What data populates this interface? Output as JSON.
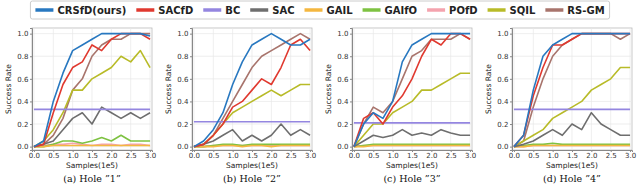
{
  "chart_data": [
    {
      "type": "line",
      "title": "(a) Hole ”1”",
      "xlabel": "Samples(1e5)",
      "ylabel": "Success Rate",
      "legend": "top",
      "grid": true,
      "x": [
        0,
        0.25,
        0.5,
        0.75,
        1.0,
        1.25,
        1.5,
        1.75,
        2.0,
        2.25,
        2.5,
        2.75,
        3.0
      ],
      "xlim": [
        -0.05,
        3.05
      ],
      "ylim": [
        -0.03,
        1.05
      ],
      "xticks": [
        {
          "value": 0,
          "label": "0.0"
        },
        {
          "value": 0.5,
          "label": "0.5"
        },
        {
          "value": 1,
          "label": "1.0"
        },
        {
          "value": 1.5,
          "label": "1.5"
        },
        {
          "value": 2,
          "label": "2.0"
        },
        {
          "value": 2.5,
          "label": "2.5"
        },
        {
          "value": 3,
          "label": "3.0"
        }
      ],
      "yticks": [
        {
          "value": 0,
          "label": "0.0"
        },
        {
          "value": 0.2,
          "label": "0.2"
        },
        {
          "value": 0.4,
          "label": "0.4"
        },
        {
          "value": 0.6,
          "label": "0.6"
        },
        {
          "value": 0.8,
          "label": "0.8"
        },
        {
          "value": 1,
          "label": "1.0"
        }
      ],
      "series": [
        {
          "name": "CRSfD(ours)",
          "color": "#2878c0",
          "values": [
            0,
            0.05,
            0.4,
            0.65,
            0.85,
            0.9,
            0.95,
            1.0,
            1.0,
            1.0,
            1.0,
            1.0,
            0.98
          ]
        },
        {
          "name": "SACfD",
          "color": "#e0392f",
          "values": [
            0,
            0.02,
            0.3,
            0.55,
            0.7,
            0.75,
            0.9,
            0.85,
            0.95,
            1.0,
            1.0,
            1.0,
            0.95
          ]
        },
        {
          "name": "BC",
          "color": "#9486e0",
          "values": [
            0.33,
            0.33,
            0.33,
            0.33,
            0.33,
            0.33,
            0.33,
            0.33,
            0.33,
            0.33,
            0.33,
            0.33,
            0.33
          ]
        },
        {
          "name": "SAC",
          "color": "#6e6e6e",
          "values": [
            0,
            0.02,
            0.05,
            0.15,
            0.25,
            0.3,
            0.2,
            0.35,
            0.3,
            0.25,
            0.3,
            0.25,
            0.3
          ]
        },
        {
          "name": "GAIL",
          "color": "#f4b740",
          "values": [
            0,
            0,
            0.01,
            0.01,
            0.01,
            0.01,
            0.01,
            0.01,
            0.01,
            0.01,
            0.01,
            0.01,
            0.01
          ]
        },
        {
          "name": "GAIfO",
          "color": "#7ec242",
          "values": [
            0,
            0,
            0.02,
            0.05,
            0.05,
            0.03,
            0.05,
            0.08,
            0.05,
            0.1,
            0.05,
            0.05,
            0.05
          ]
        },
        {
          "name": "POfD",
          "color": "#f4a3ae",
          "values": [
            0,
            0.01,
            0.02,
            0.02,
            0.03,
            0.02,
            0.01,
            0.02,
            0.02,
            0.01,
            0.02,
            0.02,
            0.01
          ]
        },
        {
          "name": "SQIL",
          "color": "#b8bb28",
          "values": [
            0,
            0.05,
            0.15,
            0.3,
            0.5,
            0.5,
            0.6,
            0.65,
            0.7,
            0.8,
            0.75,
            0.85,
            0.7
          ]
        },
        {
          "name": "RS-GM",
          "color": "#a8746c",
          "values": [
            0,
            0.02,
            0.1,
            0.25,
            0.5,
            0.6,
            0.8,
            0.9,
            0.95,
            0.95,
            1.0,
            1.0,
            1.0
          ]
        }
      ]
    },
    {
      "type": "line",
      "title": "(b) Hole ”2”",
      "xlabel": "Samples(1e5)",
      "ylabel": "Success Rate",
      "grid": true,
      "x": [
        0,
        0.25,
        0.5,
        0.75,
        1.0,
        1.25,
        1.5,
        1.75,
        2.0,
        2.25,
        2.5,
        2.75,
        3.0
      ],
      "xlim": [
        -0.05,
        3.05
      ],
      "ylim": [
        -0.03,
        1.05
      ],
      "xticks": [
        {
          "value": 0,
          "label": "0.0"
        },
        {
          "value": 0.5,
          "label": "0.5"
        },
        {
          "value": 1,
          "label": "1.0"
        },
        {
          "value": 1.5,
          "label": "1.5"
        },
        {
          "value": 2,
          "label": "2.0"
        },
        {
          "value": 2.5,
          "label": "2.5"
        },
        {
          "value": 3,
          "label": "3.0"
        }
      ],
      "yticks": [
        {
          "value": 0,
          "label": "0.0"
        },
        {
          "value": 0.2,
          "label": "0.2"
        },
        {
          "value": 0.4,
          "label": "0.4"
        },
        {
          "value": 0.6,
          "label": "0.6"
        },
        {
          "value": 0.8,
          "label": "0.8"
        },
        {
          "value": 1,
          "label": "1.0"
        }
      ],
      "series": [
        {
          "name": "CRSfD(ours)",
          "color": "#2878c0",
          "values": [
            0,
            0.05,
            0.15,
            0.3,
            0.55,
            0.75,
            0.9,
            0.95,
            1.0,
            0.95,
            0.9,
            0.9,
            0.95
          ]
        },
        {
          "name": "SACfD",
          "color": "#e0392f",
          "values": [
            0,
            0.02,
            0.1,
            0.2,
            0.35,
            0.4,
            0.5,
            0.6,
            0.55,
            0.7,
            0.9,
            0.95,
            0.85
          ]
        },
        {
          "name": "BC",
          "color": "#9486e0",
          "values": [
            0.22,
            0.22,
            0.22,
            0.22,
            0.22,
            0.22,
            0.22,
            0.22,
            0.22,
            0.22,
            0.22,
            0.22,
            0.22
          ]
        },
        {
          "name": "SAC",
          "color": "#6e6e6e",
          "values": [
            0,
            0.02,
            0.05,
            0.1,
            0.15,
            0.05,
            0.1,
            0.05,
            0.1,
            0.2,
            0.1,
            0.15,
            0.1
          ]
        },
        {
          "name": "GAIL",
          "color": "#f4b740",
          "values": [
            0,
            0,
            0,
            0.01,
            0.01,
            0,
            0.01,
            0.01,
            0,
            0.01,
            0.01,
            0.01,
            0.01
          ]
        },
        {
          "name": "GAIfO",
          "color": "#7ec242",
          "values": [
            0,
            0,
            0.01,
            0.02,
            0.02,
            0.01,
            0.02,
            0.02,
            0.02,
            0.02,
            0.02,
            0.02,
            0.02
          ]
        },
        {
          "name": "POfD",
          "color": "#f4a3ae",
          "values": [
            0,
            0,
            0.01,
            0.01,
            0.01,
            0.01,
            0.01,
            0.01,
            0.01,
            0.01,
            0.01,
            0.01,
            0.01
          ]
        },
        {
          "name": "SQIL",
          "color": "#b8bb28",
          "values": [
            0,
            0.02,
            0.1,
            0.2,
            0.3,
            0.35,
            0.4,
            0.45,
            0.5,
            0.45,
            0.5,
            0.55,
            0.55
          ]
        },
        {
          "name": "RS-GM",
          "color": "#a8746c",
          "values": [
            0,
            0.02,
            0.1,
            0.25,
            0.4,
            0.55,
            0.7,
            0.8,
            0.85,
            0.9,
            0.95,
            1.0,
            0.95
          ]
        }
      ]
    },
    {
      "type": "line",
      "title": "(c) Hole ”3”",
      "xlabel": "Samples(1e5)",
      "ylabel": "Success Rate",
      "grid": true,
      "x": [
        0,
        0.25,
        0.5,
        0.75,
        1.0,
        1.25,
        1.5,
        1.75,
        2.0,
        2.25,
        2.5,
        2.75,
        3.0
      ],
      "xlim": [
        -0.05,
        3.05
      ],
      "ylim": [
        -0.03,
        1.05
      ],
      "xticks": [
        {
          "value": 0,
          "label": "0.0"
        },
        {
          "value": 0.5,
          "label": "0.5"
        },
        {
          "value": 1,
          "label": "1.0"
        },
        {
          "value": 1.5,
          "label": "1.5"
        },
        {
          "value": 2,
          "label": "2.0"
        },
        {
          "value": 2.5,
          "label": "2.5"
        },
        {
          "value": 3,
          "label": "3.0"
        }
      ],
      "yticks": [
        {
          "value": 0,
          "label": "0.0"
        },
        {
          "value": 0.2,
          "label": "0.2"
        },
        {
          "value": 0.4,
          "label": "0.4"
        },
        {
          "value": 0.6,
          "label": "0.6"
        },
        {
          "value": 0.8,
          "label": "0.8"
        },
        {
          "value": 1,
          "label": "1.0"
        }
      ],
      "series": [
        {
          "name": "CRSfD(ours)",
          "color": "#2878c0",
          "values": [
            0,
            0.2,
            0.3,
            0.25,
            0.4,
            0.75,
            0.9,
            0.95,
            1.0,
            1.0,
            1.0,
            1.0,
            1.0
          ]
        },
        {
          "name": "SACfD",
          "color": "#e0392f",
          "values": [
            0,
            0.25,
            0.3,
            0.2,
            0.35,
            0.45,
            0.6,
            0.8,
            0.95,
            0.9,
            1.0,
            1.0,
            0.95
          ]
        },
        {
          "name": "BC",
          "color": "#9486e0",
          "values": [
            0.21,
            0.21,
            0.21,
            0.21,
            0.21,
            0.21,
            0.21,
            0.21,
            0.21,
            0.21,
            0.21,
            0.21,
            0.21
          ]
        },
        {
          "name": "SAC",
          "color": "#6e6e6e",
          "values": [
            0,
            0.05,
            0.1,
            0.08,
            0.1,
            0.15,
            0.1,
            0.12,
            0.1,
            0.15,
            0.12,
            0.1,
            0.1
          ]
        },
        {
          "name": "GAIL",
          "color": "#f4b740",
          "values": [
            0,
            0,
            0.01,
            0.01,
            0.01,
            0.01,
            0.01,
            0.01,
            0.01,
            0.01,
            0.01,
            0.01,
            0.01
          ]
        },
        {
          "name": "GAIfO",
          "color": "#7ec242",
          "values": [
            0,
            0.01,
            0.02,
            0.02,
            0.02,
            0.02,
            0.02,
            0.02,
            0.02,
            0.02,
            0.02,
            0.02,
            0.02
          ]
        },
        {
          "name": "POfD",
          "color": "#f4a3ae",
          "values": [
            0,
            0.01,
            0.01,
            0.01,
            0.01,
            0.01,
            0.01,
            0.01,
            0.01,
            0.01,
            0.01,
            0.01,
            0.01
          ]
        },
        {
          "name": "SQIL",
          "color": "#b8bb28",
          "values": [
            0,
            0.1,
            0.2,
            0.2,
            0.3,
            0.35,
            0.4,
            0.5,
            0.5,
            0.55,
            0.6,
            0.65,
            0.65
          ]
        },
        {
          "name": "RS-GM",
          "color": "#a8746c",
          "values": [
            0,
            0.2,
            0.35,
            0.3,
            0.4,
            0.6,
            0.8,
            0.85,
            0.95,
            0.95,
            0.95,
            1.0,
            0.95
          ]
        }
      ]
    },
    {
      "type": "line",
      "title": "(d) Hole ”4”",
      "xlabel": "Samples(1e5)",
      "ylabel": "Success Rate",
      "grid": true,
      "x": [
        0,
        0.25,
        0.5,
        0.75,
        1.0,
        1.25,
        1.5,
        1.75,
        2.0,
        2.25,
        2.5,
        2.75,
        3.0
      ],
      "xlim": [
        -0.05,
        3.05
      ],
      "ylim": [
        -0.03,
        1.05
      ],
      "xticks": [
        {
          "value": 0,
          "label": "0.0"
        },
        {
          "value": 0.5,
          "label": "0.5"
        },
        {
          "value": 1,
          "label": "1.0"
        },
        {
          "value": 1.5,
          "label": "1.5"
        },
        {
          "value": 2,
          "label": "2.0"
        },
        {
          "value": 2.5,
          "label": "2.5"
        },
        {
          "value": 3,
          "label": "3.0"
        }
      ],
      "yticks": [
        {
          "value": 0,
          "label": "0.0"
        },
        {
          "value": 0.2,
          "label": "0.2"
        },
        {
          "value": 0.4,
          "label": "0.4"
        },
        {
          "value": 0.6,
          "label": "0.6"
        },
        {
          "value": 0.8,
          "label": "0.8"
        },
        {
          "value": 1,
          "label": "1.0"
        }
      ],
      "series": [
        {
          "name": "CRSfD(ours)",
          "color": "#2878c0",
          "values": [
            0,
            0.1,
            0.5,
            0.8,
            0.9,
            0.95,
            1.0,
            1.0,
            1.0,
            1.0,
            1.0,
            1.0,
            1.0
          ]
        },
        {
          "name": "SACfD",
          "color": "#e0392f",
          "values": [
            0,
            0.1,
            0.45,
            0.7,
            0.9,
            0.9,
            0.95,
            1.0,
            1.0,
            1.0,
            1.0,
            1.0,
            1.0
          ]
        },
        {
          "name": "BC",
          "color": "#9486e0",
          "values": [
            0.33,
            0.33,
            0.33,
            0.33,
            0.33,
            0.33,
            0.33,
            0.33,
            0.33,
            0.33,
            0.33,
            0.33,
            0.33
          ]
        },
        {
          "name": "SAC",
          "color": "#6e6e6e",
          "values": [
            0,
            0.02,
            0.05,
            0.1,
            0.15,
            0.1,
            0.2,
            0.15,
            0.3,
            0.2,
            0.15,
            0.1,
            0.1
          ]
        },
        {
          "name": "GAIL",
          "color": "#f4b740",
          "values": [
            0,
            0,
            0.01,
            0.01,
            0.01,
            0.01,
            0.01,
            0.01,
            0.01,
            0.01,
            0.01,
            0.01,
            0.01
          ]
        },
        {
          "name": "GAIfO",
          "color": "#7ec242",
          "values": [
            0,
            0.01,
            0.02,
            0.02,
            0.03,
            0.02,
            0.02,
            0.02,
            0.02,
            0.02,
            0.02,
            0.02,
            0.02
          ]
        },
        {
          "name": "POfD",
          "color": "#f4a3ae",
          "values": [
            0,
            0,
            0.01,
            0.01,
            0.01,
            0.01,
            0.01,
            0.01,
            0.01,
            0.01,
            0.01,
            0.01,
            0.01
          ]
        },
        {
          "name": "SQIL",
          "color": "#b8bb28",
          "values": [
            0,
            0.05,
            0.1,
            0.15,
            0.25,
            0.3,
            0.35,
            0.4,
            0.5,
            0.55,
            0.6,
            0.7,
            0.7
          ]
        },
        {
          "name": "RS-GM",
          "color": "#a8746c",
          "values": [
            0,
            0.05,
            0.35,
            0.6,
            0.8,
            0.9,
            0.95,
            1.0,
            1.0,
            1.0,
            1.0,
            0.95,
            1.0
          ]
        }
      ]
    }
  ]
}
